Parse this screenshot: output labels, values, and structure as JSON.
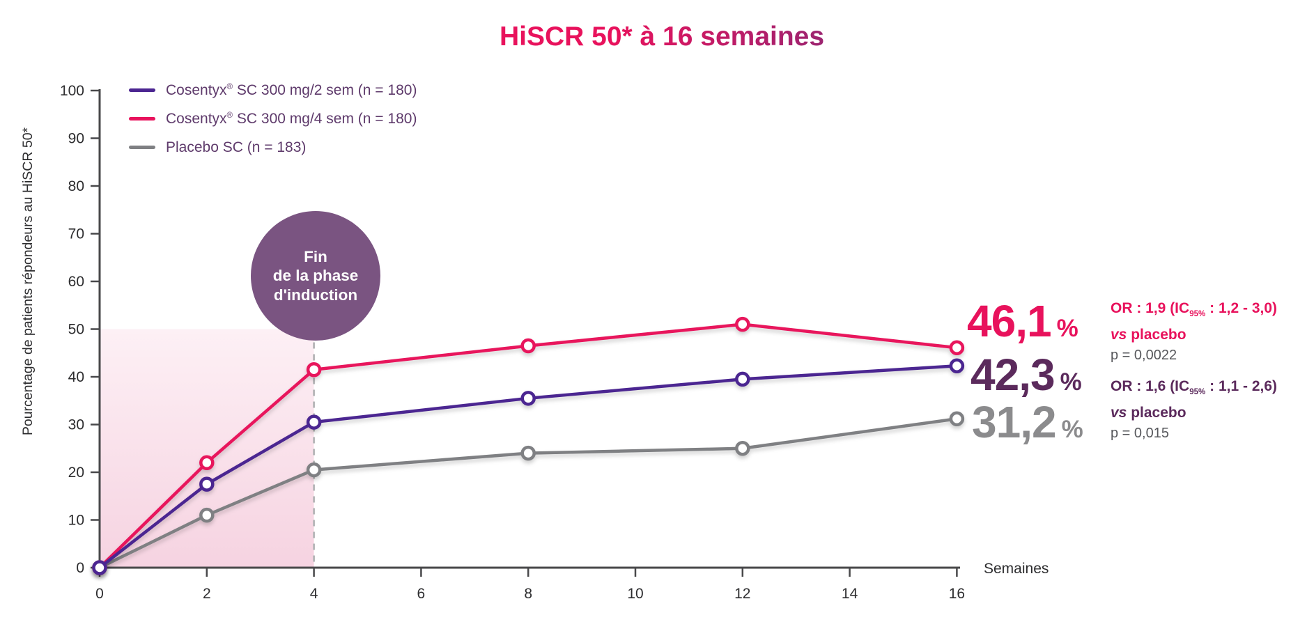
{
  "title": "HiSCR 50* à 16 semaines",
  "legend": {
    "items": [
      {
        "pre": "Cosentyx",
        "sup": "®",
        "post": " SC 300 mg/2 sem (n = 180)",
        "color": "#4b2591"
      },
      {
        "pre": "Cosentyx",
        "sup": "®",
        "post": " SC 300 mg/4 sem (n = 180)",
        "color": "#e8125c"
      },
      {
        "pre": "Placebo SC (n = 183)",
        "sup": "",
        "post": "",
        "color": "#7f8083"
      }
    ]
  },
  "induction_badge": {
    "line1": "Fin",
    "line2": "de la phase",
    "line3": "d'induction",
    "color": "#7a5481"
  },
  "results": {
    "values": [
      {
        "value": "46,1",
        "unit": "%",
        "color": "#e8125c"
      },
      {
        "value": "42,3",
        "unit": "%",
        "color": "#5b2a5c"
      },
      {
        "value": "31,2",
        "unit": "%",
        "color": "#8b8b8d"
      }
    ],
    "p_color": "#56575b",
    "stats": [
      {
        "or_pre": "OR : 1,9 (IC",
        "or_sub": "95%",
        "or_post": " : 1,2 - 3,0)",
        "vs": "vs",
        "vs_post": " placebo",
        "p": "p = 0,0022",
        "color": "#e8125c"
      },
      {
        "or_pre": "OR : 1,6 (IC",
        "or_sub": "95%",
        "or_post": " : 1,1 - 2,6)",
        "vs": "vs",
        "vs_post": " placebo",
        "p": "p = 0,015",
        "color": "#5b2a5c"
      }
    ]
  },
  "chart_data": {
    "type": "line",
    "title": "HiSCR 50* à 16 semaines",
    "xlabel": "Semaines",
    "ylabel": "Pourcentage de patients répondeurs au HiSCR 50*",
    "x": [
      0,
      2,
      4,
      8,
      12,
      16
    ],
    "xticks": [
      0,
      2,
      4,
      6,
      8,
      10,
      12,
      14,
      16
    ],
    "ylim": [
      0,
      100
    ],
    "ytick_step": 10,
    "grid": false,
    "legend_position": "top-left",
    "series": [
      {
        "name": "Cosentyx® SC 300 mg/2 sem (n = 180)",
        "color": "#4b2591",
        "values": [
          0,
          17.5,
          30.5,
          35.5,
          39.5,
          42.3
        ],
        "final_label": "42,3 %"
      },
      {
        "name": "Cosentyx® SC 300 mg/4 sem (n = 180)",
        "color": "#e8125c",
        "values": [
          0,
          22,
          41.5,
          46.5,
          51,
          46.1
        ],
        "final_label": "46,1 %"
      },
      {
        "name": "Placebo SC (n = 183)",
        "color": "#7f8083",
        "values": [
          0,
          11,
          20.5,
          24,
          25,
          31.2
        ],
        "final_label": "31,2 %"
      }
    ],
    "marker": "open-circle",
    "shaded_region": {
      "x_from": 0,
      "x_to": 4,
      "y_from": 0,
      "y_to": 50,
      "color_top": "#fdf0f5",
      "color_bottom": "#f6d3e1"
    },
    "dashed_line_x": 4,
    "annotation_circle_lines": [
      "Fin",
      "de la phase",
      "d'induction"
    ]
  }
}
